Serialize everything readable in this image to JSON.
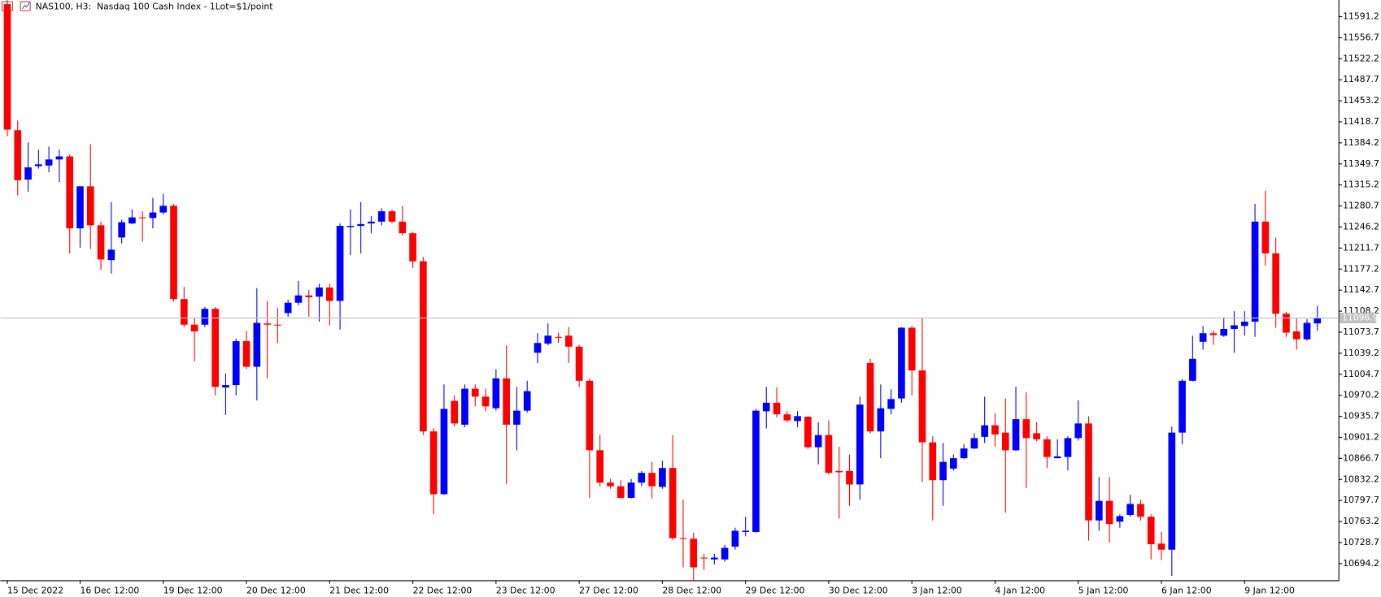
{
  "chart_data": {
    "type": "candlestick",
    "title": "NAS100, H3:  Nasdaq 100 Cash Index - 1Lot=$1/point",
    "categories": [
      "15 Dec 2022",
      null,
      null,
      null,
      null,
      null,
      null,
      "16 Dec 12:00",
      null,
      null,
      null,
      null,
      null,
      null,
      null,
      "19 Dec 12:00",
      null,
      null,
      null,
      null,
      null,
      null,
      null,
      "20 Dec 12:00",
      null,
      null,
      null,
      null,
      null,
      null,
      null,
      "21 Dec 12:00",
      null,
      null,
      null,
      null,
      null,
      null,
      null,
      "22 Dec 12:00",
      null,
      null,
      null,
      null,
      null,
      null,
      null,
      "23 Dec 12:00",
      null,
      null,
      null,
      null,
      null,
      null,
      null,
      "27 Dec 12:00",
      null,
      null,
      null,
      null,
      null,
      null,
      null,
      "28 Dec 12:00",
      null,
      null,
      null,
      null,
      null,
      null,
      null,
      "29 Dec 12:00",
      null,
      null,
      null,
      null,
      null,
      null,
      null,
      "30 Dec 12:00",
      null,
      null,
      null,
      null,
      null,
      null,
      null,
      "3 Jan 12:00",
      null,
      null,
      null,
      null,
      null,
      null,
      null,
      "4 Jan 12:00",
      null,
      null,
      null,
      null,
      null,
      null,
      null,
      "5 Jan 12:00",
      null,
      null,
      null,
      null,
      null,
      null,
      null,
      "6 Jan 12:00",
      null,
      null,
      null,
      null,
      null,
      null,
      null,
      "9 Jan 12:00",
      null,
      null,
      null,
      null,
      null,
      null,
      null
    ],
    "open": [
      11611,
      11405,
      11324,
      11346,
      11347,
      11357,
      11362,
      11244,
      11313,
      11249,
      11192,
      11229,
      11252,
      11262,
      11261,
      11270,
      11281,
      11128,
      11086,
      11086,
      11112,
      10983,
      10987,
      11059,
      11017,
      11088,
      11086,
      11105,
      11122,
      11134,
      11132,
      11147,
      11125,
      11246,
      11248,
      11252,
      11255,
      11272,
      11255,
      11236,
      11190,
      10911,
      10808,
      10961,
      10922,
      10981,
      10968,
      10949,
      10998,
      10922,
      10945,
      11040,
      11055,
      11066,
      11068,
      11050,
      10994,
      10880,
      10827,
      10821,
      10802,
      10827,
      10843,
      10820,
      10851,
      10736,
      10735,
      10704,
      10701,
      10701,
      10722,
      10746,
      10746,
      10944,
      10958,
      10939,
      10928,
      10935,
      10885,
      10905,
      10846,
      10846,
      10824,
      11023,
      10911,
      10948,
      10965,
      11081,
      11011,
      10893,
      10831,
      10850,
      10867,
      10883,
      10902,
      10921,
      10909,
      10880,
      10931,
      10908,
      10898,
      10867,
      10869,
      10900,
      10924,
      10765,
      10797,
      10763,
      10774,
      10792,
      10771,
      10727,
      10717,
      10909,
      10994,
      11058,
      11072,
      11068,
      11079,
      11084,
      11091,
      11255,
      11203,
      11104,
      11075,
      11062,
      11088
    ],
    "high": [
      11618,
      11421,
      11385,
      11373,
      11378,
      11373,
      11365,
      11313,
      11382,
      11255,
      11287,
      11258,
      11275,
      11272,
      11294,
      11301,
      11284,
      11148,
      11097,
      11115,
      11115,
      11006,
      11063,
      11076,
      11146,
      11125,
      11114,
      11127,
      11158,
      11143,
      11153,
      11153,
      11252,
      11275,
      11287,
      11264,
      11277,
      11275,
      11281,
      11238,
      11197,
      10916,
      10988,
      10970,
      10988,
      10988,
      10981,
      11013,
      11052,
      10984,
      10994,
      11072,
      11088,
      11073,
      11082,
      11053,
      10998,
      10905,
      10833,
      10831,
      10833,
      10846,
      10861,
      10863,
      10905,
      10799,
      10745,
      10710,
      10710,
      10725,
      10753,
      10771,
      10948,
      10984,
      10983,
      10944,
      10944,
      10936,
      10926,
      10929,
      10886,
      10873,
      10968,
      11030,
      10988,
      10980,
      11082,
      11084,
      11097,
      10903,
      10892,
      10873,
      10890,
      10908,
      10968,
      10941,
      10965,
      10984,
      10975,
      10926,
      10903,
      10898,
      10903,
      10962,
      10936,
      10836,
      10836,
      10775,
      10807,
      10799,
      10775,
      10746,
      10919,
      10997,
      11068,
      11084,
      11076,
      11098,
      11108,
      11108,
      11284,
      11306,
      11229,
      11107,
      11097,
      11095,
      11117
    ],
    "low": [
      11395,
      11298,
      11304,
      11342,
      11336,
      11320,
      11203,
      11212,
      11210,
      11176,
      11170,
      11219,
      11251,
      11222,
      11244,
      11267,
      11124,
      11082,
      11026,
      11082,
      10970,
      10938,
      10970,
      11013,
      10962,
      10998,
      11056,
      11099,
      11118,
      11099,
      11091,
      11085,
      11078,
      11200,
      11203,
      11236,
      11249,
      11252,
      11232,
      11179,
      10905,
      10775,
      10807,
      10919,
      10918,
      10952,
      10944,
      10945,
      10825,
      10880,
      10942,
      11023,
      11052,
      11056,
      11023,
      10984,
      10802,
      10821,
      10817,
      10801,
      10801,
      10821,
      10801,
      10817,
      10733,
      10688,
      10667,
      10684,
      10693,
      10697,
      10717,
      10739,
      10745,
      10916,
      10934,
      10926,
      10918,
      10882,
      10857,
      10840,
      10768,
      10789,
      10799,
      10908,
      10867,
      10939,
      10958,
      10970,
      10828,
      10765,
      10789,
      10847,
      10866,
      10882,
      10892,
      10886,
      10778,
      10879,
      10818,
      10895,
      10851,
      10867,
      10847,
      10896,
      10732,
      10748,
      10729,
      10753,
      10771,
      10765,
      10701,
      10700,
      10674,
      10890,
      10993,
      11045,
      11053,
      11066,
      11040,
      11068,
      11066,
      11183,
      11081,
      11066,
      11045,
      11060,
      11076
    ],
    "close": [
      11406,
      11323,
      11344,
      11349,
      11357,
      11362,
      11244,
      11313,
      11249,
      11193,
      11209,
      11254,
      11262,
      11261,
      11270,
      11281,
      11128,
      11086,
      11075,
      11112,
      10984,
      10987,
      11059,
      11017,
      11089,
      11086,
      11085,
      11122,
      11134,
      11131,
      11147,
      11125,
      11248,
      11248,
      11251,
      11255,
      11272,
      11255,
      11236,
      11190,
      10911,
      10808,
      10948,
      10924,
      10981,
      10968,
      10952,
      10998,
      10922,
      10945,
      10977,
      11056,
      11068,
      11066,
      11050,
      10994,
      10880,
      10827,
      10821,
      10802,
      10827,
      10843,
      10821,
      10851,
      10736,
      10735,
      10688,
      10703,
      10704,
      10720,
      10748,
      10748,
      10945,
      10958,
      10939,
      10929,
      10936,
      10885,
      10905,
      10843,
      10844,
      10824,
      10955,
      10911,
      10949,
      10964,
      11081,
      11011,
      10893,
      10831,
      10861,
      10867,
      10883,
      10900,
      10921,
      10906,
      10880,
      10931,
      10900,
      10898,
      10869,
      10870,
      10900,
      10924,
      10765,
      10797,
      10759,
      10772,
      10792,
      10771,
      10726,
      10717,
      10909,
      10994,
      11030,
      11072,
      11069,
      11079,
      11085,
      11091,
      11255,
      11203,
      11104,
      11073,
      11062,
      11089,
      11097
    ],
    "up_color": "#0000ff",
    "down_color": "#ff0000",
    "price_line": 11096.9,
    "ylim": [
      10666.8,
      11618.5
    ],
    "yticks": [
      10694.2,
      10728.7,
      10763.2,
      10797.7,
      10832.2,
      10866.7,
      10901.2,
      10935.7,
      10970.2,
      11004.7,
      11039.2,
      11073.7,
      11108.2,
      11142.7,
      11177.2,
      11211.7,
      11246.2,
      11280.7,
      11315.2,
      11349.7,
      11384.2,
      11418.7,
      11453.2,
      11487.7,
      11522.2,
      11556.7,
      11591.2
    ],
    "grid": false
  }
}
